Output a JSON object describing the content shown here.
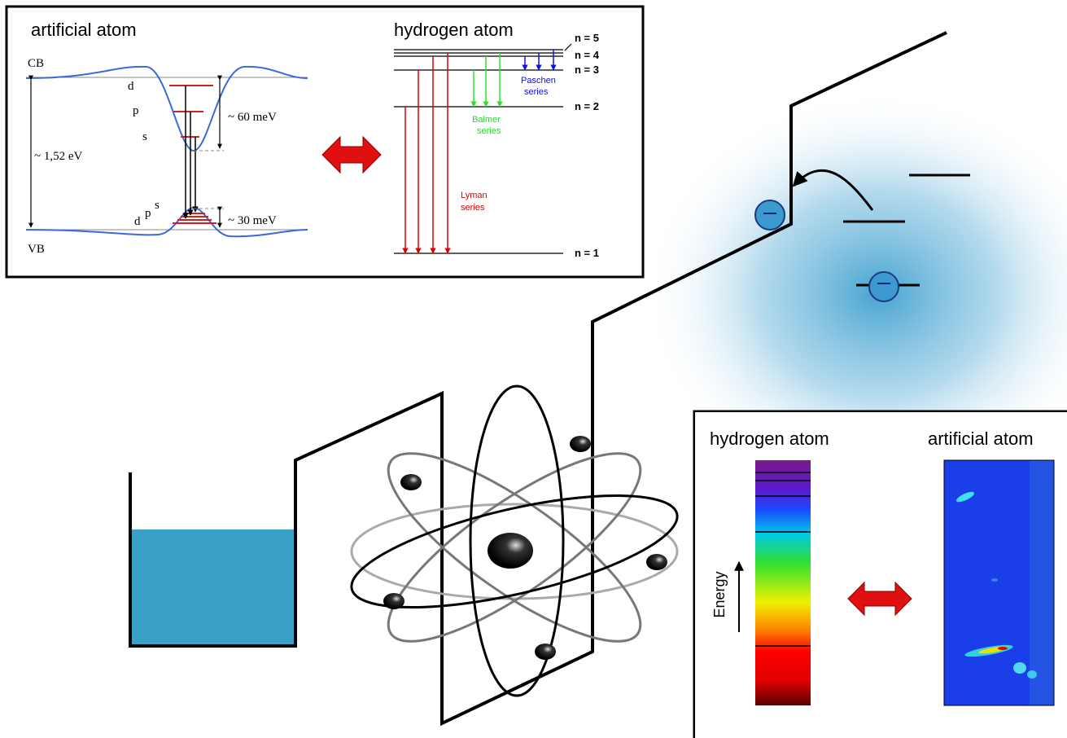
{
  "top_panel": {
    "artificial_atom": {
      "title": "artificial atom",
      "cb": "CB",
      "vb": "VB",
      "upper_levels": [
        "d",
        "p",
        "s"
      ],
      "lower_levels": [
        "d",
        "p",
        "s"
      ],
      "gap": "~ 1,52 eV",
      "electron_confinement": "~ 60 meV",
      "hole_confinement": "~ 30 meV"
    },
    "hydrogen_atom": {
      "title": "hydrogen atom",
      "levels": [
        "n = 5",
        "n = 4",
        "n = 3",
        "n = 2",
        "n = 1"
      ],
      "series": [
        {
          "lines": [
            "Paschen",
            "series"
          ]
        },
        {
          "lines": [
            "Balmer",
            "series"
          ]
        },
        {
          "lines": [
            "Lyman",
            "series"
          ]
        }
      ]
    }
  },
  "bottom_panel": {
    "left_title": "hydrogen atom",
    "right_title": "artificial atom",
    "axis_label": "Energy"
  }
}
